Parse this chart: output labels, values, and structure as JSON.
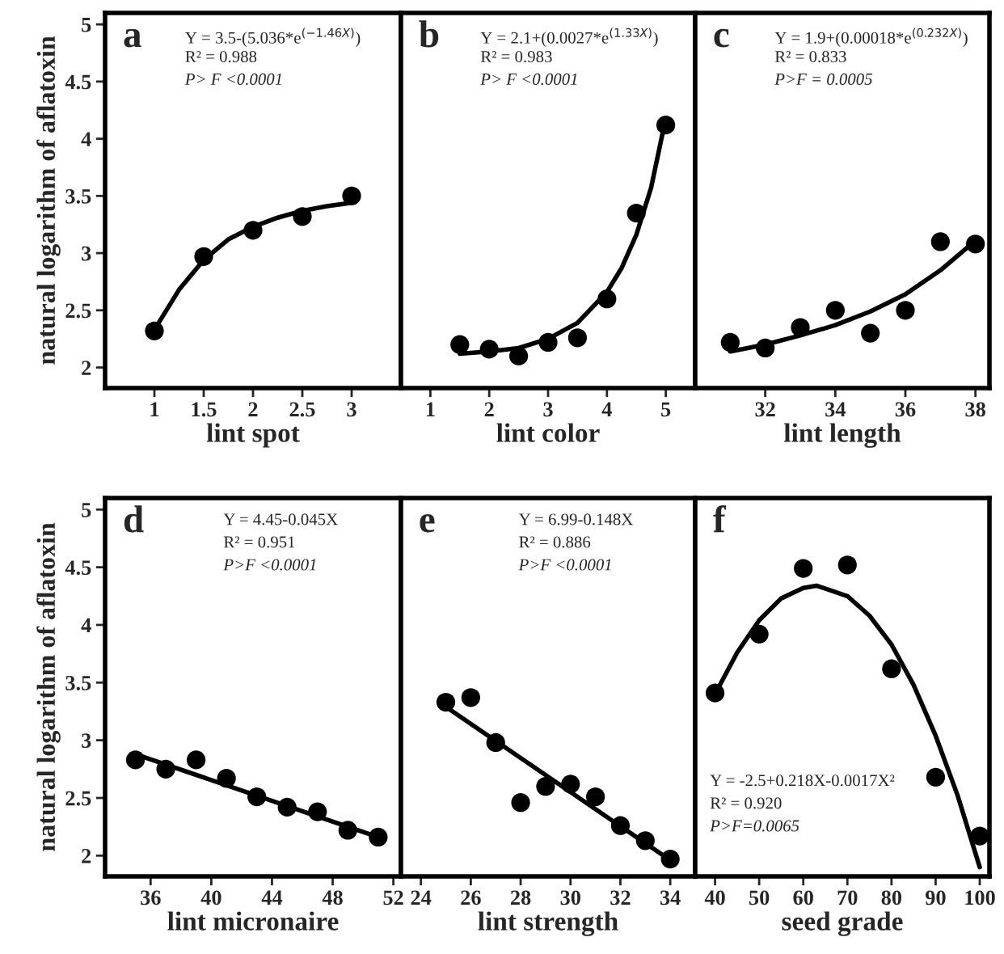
{
  "chart_data": [
    {
      "type": "scatter",
      "xlabel": "lint spot",
      "ylabel": "natural logarithm of aflatoxin",
      "xlim": [
        0.5,
        3.5
      ],
      "xticks": [
        1,
        1.5,
        2,
        2.5,
        3
      ],
      "ylim": [
        1.82,
        5.1
      ],
      "yticks": [
        2,
        2.5,
        3,
        3.5,
        4,
        4.5,
        5
      ],
      "marker": "circle",
      "grid": false,
      "legend": false,
      "annotations": [
        "a",
        "Y = 3.5-(5.036*e$^{(−1.46X)}$)",
        "R² = 0.988",
        "P> F <0.0001"
      ],
      "series": [
        {
          "color": "#000000",
          "x": [
            1,
            1.5,
            2,
            2.5,
            3
          ],
          "values": [
            2.32,
            2.97,
            3.2,
            3.32,
            3.5
          ]
        },
        {
          "type": "line",
          "color": "#000000",
          "x": [
            1,
            1.25,
            1.5,
            1.75,
            2,
            2.25,
            2.5,
            2.75,
            3
          ],
          "values": [
            2.33,
            2.68,
            2.94,
            3.12,
            3.23,
            3.31,
            3.37,
            3.41,
            3.44
          ],
          "marker": "none"
        }
      ]
    },
    {
      "type": "scatter",
      "xlabel": "lint color",
      "xlim": [
        0.5,
        5.5
      ],
      "xticks": [
        1,
        2,
        3,
        4,
        5
      ],
      "ylim": [
        1.82,
        5.1
      ],
      "yticks": [
        2,
        2.5,
        3,
        3.5,
        4,
        4.5,
        5
      ],
      "tick_labels": "x",
      "marker": "circle",
      "grid": false,
      "legend": false,
      "annotations": [
        "b",
        "Y = 2.1+(0.0027*e$^{(1.33X)}$)",
        "R² = 0.983",
        "P> F <0.0001"
      ],
      "series": [
        {
          "color": "#000000",
          "x": [
            1.5,
            2,
            2.5,
            3,
            3.5,
            4,
            4.5,
            5
          ],
          "values": [
            2.2,
            2.16,
            2.1,
            2.22,
            2.26,
            2.6,
            3.35,
            4.12
          ]
        },
        {
          "type": "line",
          "color": "#000000",
          "x": [
            1.5,
            2,
            2.5,
            3,
            3.5,
            4,
            4.25,
            4.5,
            4.75,
            5
          ],
          "values": [
            2.12,
            2.14,
            2.17,
            2.25,
            2.39,
            2.66,
            2.87,
            3.16,
            3.57,
            4.18
          ],
          "marker": "none"
        }
      ]
    },
    {
      "type": "scatter",
      "xlabel": "lint length",
      "xlim": [
        30,
        38.4
      ],
      "xticks": [
        32,
        34,
        36,
        38
      ],
      "ylim": [
        1.82,
        5.1
      ],
      "yticks": [
        2,
        2.5,
        3,
        3.5,
        4,
        4.5,
        5
      ],
      "tick_labels": "x",
      "marker": "circle",
      "grid": false,
      "legend": false,
      "annotations": [
        "c",
        "Y = 1.9+(0.00018*e$^{(0.232X)}$)",
        "R² = 0.833",
        "P>F = 0.0005"
      ],
      "series": [
        {
          "color": "#000000",
          "x": [
            31,
            32,
            33,
            34,
            35,
            36,
            37,
            38
          ],
          "values": [
            2.22,
            2.17,
            2.35,
            2.5,
            2.3,
            2.5,
            3.1,
            3.08
          ]
        },
        {
          "type": "line",
          "color": "#000000",
          "x": [
            31,
            32,
            33,
            34,
            35,
            36,
            37,
            38
          ],
          "values": [
            2.14,
            2.2,
            2.28,
            2.37,
            2.49,
            2.64,
            2.85,
            3.11
          ],
          "marker": "none"
        }
      ]
    },
    {
      "type": "scatter",
      "xlabel": "lint micronaire",
      "ylabel": "natural logarithm of aflatoxin",
      "xlim": [
        33,
        52.5
      ],
      "xticks": [
        36,
        40,
        44,
        48,
        52
      ],
      "ylim": [
        1.82,
        5.1
      ],
      "yticks": [
        2,
        2.5,
        3,
        3.5,
        4,
        4.5,
        5
      ],
      "marker": "circle",
      "grid": false,
      "legend": false,
      "annotations": [
        "d",
        "Y = 4.45-0.045X",
        "R² = 0.951",
        "P>F <0.0001"
      ],
      "series": [
        {
          "color": "#000000",
          "x": [
            35,
            37,
            39,
            41,
            43,
            45,
            47,
            49,
            51
          ],
          "values": [
            2.83,
            2.75,
            2.83,
            2.67,
            2.51,
            2.42,
            2.38,
            2.22,
            2.16
          ]
        },
        {
          "type": "line",
          "color": "#000000",
          "x": [
            35,
            51
          ],
          "values": [
            2.88,
            2.16
          ],
          "marker": "none"
        }
      ]
    },
    {
      "type": "scatter",
      "xlabel": "lint strength",
      "xlim": [
        23.2,
        35
      ],
      "xticks": [
        24,
        26,
        28,
        30,
        32,
        34
      ],
      "ylim": [
        1.82,
        5.1
      ],
      "yticks": [
        2,
        2.5,
        3,
        3.5,
        4,
        4.5,
        5
      ],
      "tick_labels": "x",
      "marker": "circle",
      "grid": false,
      "legend": false,
      "annotations": [
        "e",
        "Y = 6.99-0.148X",
        "R² = 0.886",
        "P>F <0.0001"
      ],
      "series": [
        {
          "color": "#000000",
          "x": [
            25,
            26,
            27,
            28,
            29,
            30,
            31,
            32,
            33,
            34
          ],
          "values": [
            3.33,
            3.37,
            2.98,
            2.46,
            2.6,
            2.62,
            2.51,
            2.26,
            2.13,
            1.97
          ]
        },
        {
          "type": "line",
          "color": "#000000",
          "x": [
            25,
            34
          ],
          "values": [
            3.29,
            1.96
          ],
          "marker": "none"
        }
      ]
    },
    {
      "type": "scatter",
      "xlabel": "seed grade",
      "xlim": [
        35.5,
        102.2
      ],
      "xticks": [
        40,
        50,
        60,
        70,
        80,
        90,
        100
      ],
      "ylim": [
        1.82,
        5.1
      ],
      "yticks": [
        2,
        2.5,
        3,
        3.5,
        4,
        4.5,
        5
      ],
      "tick_labels": "x",
      "marker": "circle",
      "grid": false,
      "legend": false,
      "annotations": [
        "f",
        "Y = -2.5+0.218X-0.0017X²",
        "R² = 0.920",
        "P>F=0.0065"
      ],
      "series": [
        {
          "color": "#000000",
          "x": [
            40,
            50,
            60,
            70,
            80,
            90,
            100
          ],
          "values": [
            3.41,
            3.92,
            4.49,
            4.52,
            3.62,
            2.68,
            2.17
          ]
        },
        {
          "type": "line",
          "color": "#000000",
          "x": [
            40,
            45,
            50,
            55,
            60,
            63,
            70,
            75,
            80,
            85,
            90,
            95,
            100
          ],
          "values": [
            3.4,
            3.76,
            4.04,
            4.23,
            4.32,
            4.34,
            4.25,
            4.08,
            3.83,
            3.48,
            3.04,
            2.52,
            1.9
          ],
          "marker": "none"
        }
      ]
    }
  ]
}
